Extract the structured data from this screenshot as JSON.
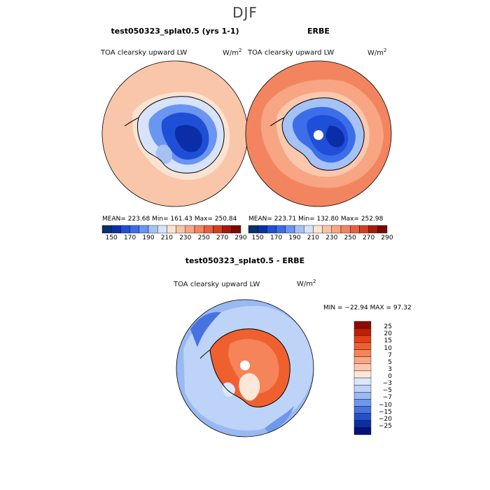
{
  "title": "DJF",
  "panels": [
    {
      "title": "test050323_splat0.5 (yrs 1-1)",
      "variable": "TOA clearsky upward LW",
      "unit_base": "W/m",
      "unit_exp": "2",
      "stats": "MEAN= 223.68   Min= 161.43   Max= 250.84"
    },
    {
      "title": "ERBE",
      "variable": "TOA clearsky upward LW",
      "unit_base": "W/m",
      "unit_exp": "2",
      "stats": "MEAN= 223.71   Min= 132.80   Max= 252.98"
    },
    {
      "title": "test050323_splat0.5 - ERBE",
      "variable": "TOA clearsky upward LW",
      "unit_base": "W/m",
      "unit_exp": "2",
      "stats": "MIN = −22.94 MAX =  97.32"
    }
  ],
  "colorbar_abs": {
    "labels": [
      "150",
      "170",
      "190",
      "210",
      "230",
      "250",
      "270",
      "290"
    ],
    "colors": [
      "#08306b",
      "#0b2ea8",
      "#1f4fd6",
      "#3b6ee8",
      "#6a95f0",
      "#a6c2f5",
      "#d6e3fa",
      "#fbe3d2",
      "#f9c3a8",
      "#f7a582",
      "#f2855f",
      "#e8603f",
      "#d53e22",
      "#a81a0a",
      "#7a0a00"
    ]
  },
  "colorbar_diff": {
    "labels": [
      "25",
      "20",
      "15",
      "10",
      "7",
      "5",
      "3",
      "0",
      "−3",
      "−5",
      "−7",
      "−10",
      "−15",
      "−20",
      "−25"
    ],
    "colors": [
      "#8b0d00",
      "#c01e07",
      "#e0401a",
      "#f0602f",
      "#f5845a",
      "#f8a684",
      "#fbc8ae",
      "#fde7d8",
      "#dce8fb",
      "#bdd3f8",
      "#99b9f3",
      "#6f98ec",
      "#4673e0",
      "#2550c8",
      "#0c2fa0",
      "#04127a"
    ]
  }
}
